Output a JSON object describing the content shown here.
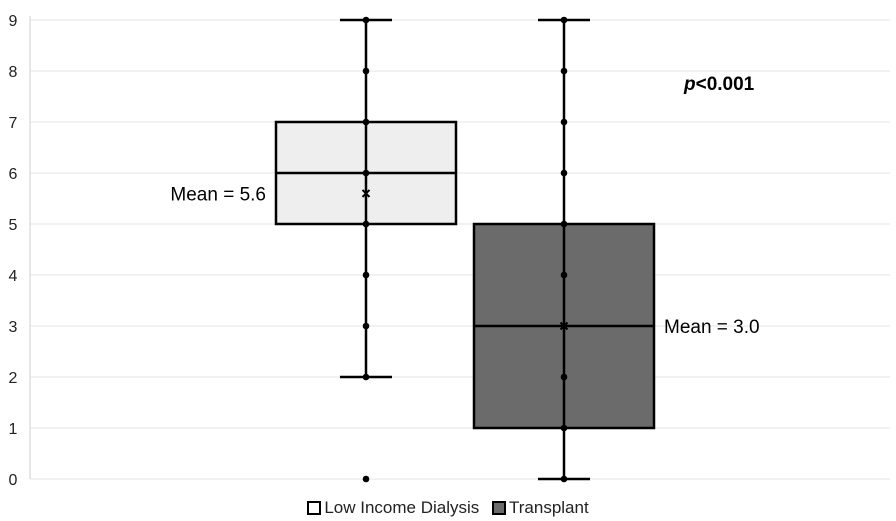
{
  "chart_data": {
    "type": "box",
    "ylim": [
      0,
      9
    ],
    "yticks": [
      0,
      1,
      2,
      3,
      4,
      5,
      6,
      7,
      8,
      9
    ],
    "grid": true,
    "legend_position": "bottom",
    "series": [
      {
        "name": "Low Income Dialysis",
        "color": "#eeeeee",
        "q1": 5,
        "median": 6,
        "q3": 7,
        "whisker_low": 2,
        "whisker_high": 9,
        "mean": 5.6,
        "points": [
          0,
          2,
          3,
          4,
          5,
          6,
          7,
          8,
          9
        ],
        "mean_label": "Mean = 5.6"
      },
      {
        "name": "Transplant",
        "color": "#6b6b6b",
        "q1": 1,
        "median": 3,
        "q3": 5,
        "whisker_low": 0,
        "whisker_high": 9,
        "mean": 3.0,
        "points": [
          0,
          1,
          2,
          4,
          5,
          6,
          7,
          8,
          9
        ],
        "mean_label": "Mean = 3.0"
      }
    ],
    "annotations": {
      "p_value_italic": "p",
      "p_value_rest": "<0.001"
    }
  }
}
